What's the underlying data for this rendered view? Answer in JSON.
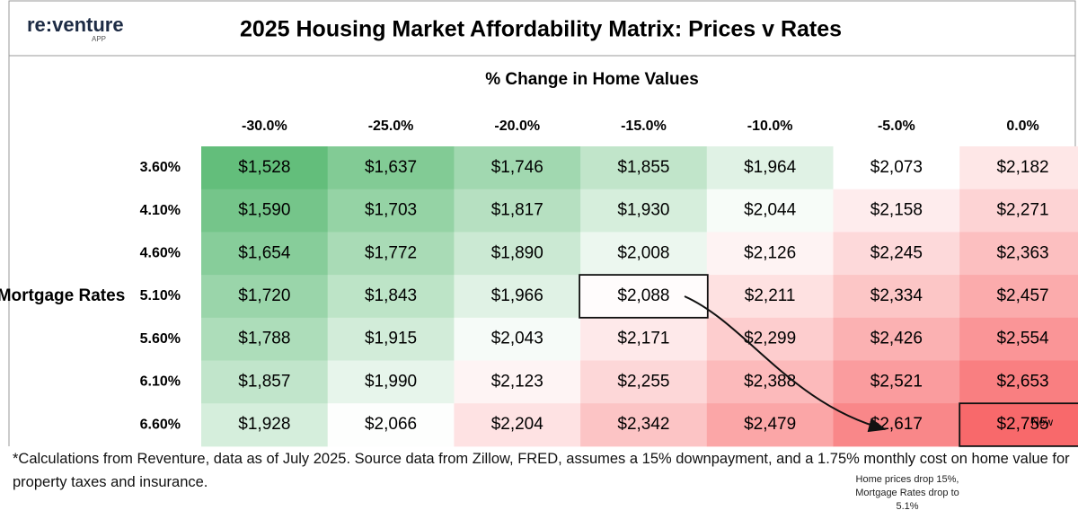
{
  "logo": {
    "text": "re:venture",
    "sub": "APP"
  },
  "chart_data": {
    "type": "heatmap",
    "title": "2025 Housing Market Affordability Matrix: Prices v Rates",
    "x_label": "% Change in Home Values",
    "y_label": "Mortgage Rates",
    "x": [
      "-30.0%",
      "-25.0%",
      "-20.0%",
      "-15.0%",
      "-10.0%",
      "-5.0%",
      "0.0%"
    ],
    "y": [
      "3.60%",
      "4.10%",
      "4.60%",
      "5.10%",
      "5.60%",
      "6.10%",
      "6.60%"
    ],
    "values": [
      [
        1528,
        1637,
        1746,
        1855,
        1964,
        2073,
        2182
      ],
      [
        1590,
        1703,
        1817,
        1930,
        2044,
        2158,
        2271
      ],
      [
        1654,
        1772,
        1890,
        2008,
        2126,
        2245,
        2363
      ],
      [
        1720,
        1843,
        1966,
        2088,
        2211,
        2334,
        2457
      ],
      [
        1788,
        1915,
        2043,
        2171,
        2299,
        2426,
        2554
      ],
      [
        1857,
        1990,
        2123,
        2255,
        2388,
        2521,
        2653
      ],
      [
        1928,
        2066,
        2204,
        2342,
        2479,
        2617,
        2755
      ]
    ],
    "value_labels": [
      [
        "$1,528",
        "$1,637",
        "$1,746",
        "$1,855",
        "$1,964",
        "$2,073",
        "$2,182"
      ],
      [
        "$1,590",
        "$1,703",
        "$1,817",
        "$1,930",
        "$2,044",
        "$2,158",
        "$2,271"
      ],
      [
        "$1,654",
        "$1,772",
        "$1,890",
        "$2,008",
        "$2,126",
        "$2,245",
        "$2,363"
      ],
      [
        "$1,720",
        "$1,843",
        "$1,966",
        "$2,088",
        "$2,211",
        "$2,334",
        "$2,457"
      ],
      [
        "$1,788",
        "$1,915",
        "$2,043",
        "$2,171",
        "$2,299",
        "$2,426",
        "$2,554"
      ],
      [
        "$1,857",
        "$1,990",
        "$2,123",
        "$2,255",
        "$2,388",
        "$2,521",
        "$2,653"
      ],
      [
        "$1,928",
        "$2,066",
        "$2,204",
        "$2,342",
        "$2,479",
        "$2,617",
        "$2,755"
      ]
    ],
    "colors": [
      "#63be7b",
      "#ffffff",
      "#f8696b"
    ],
    "annotations": [
      "Now",
      "Home prices drop 15%, Mortgage Rates drop to 5.1%"
    ],
    "footnote": "*Calculations from Reventure, data as of July 2025. Source data from Zillow, FRED, assumes a 15% downpayment, and a 1.75% monthly cost on home value for property taxes and insurance."
  }
}
